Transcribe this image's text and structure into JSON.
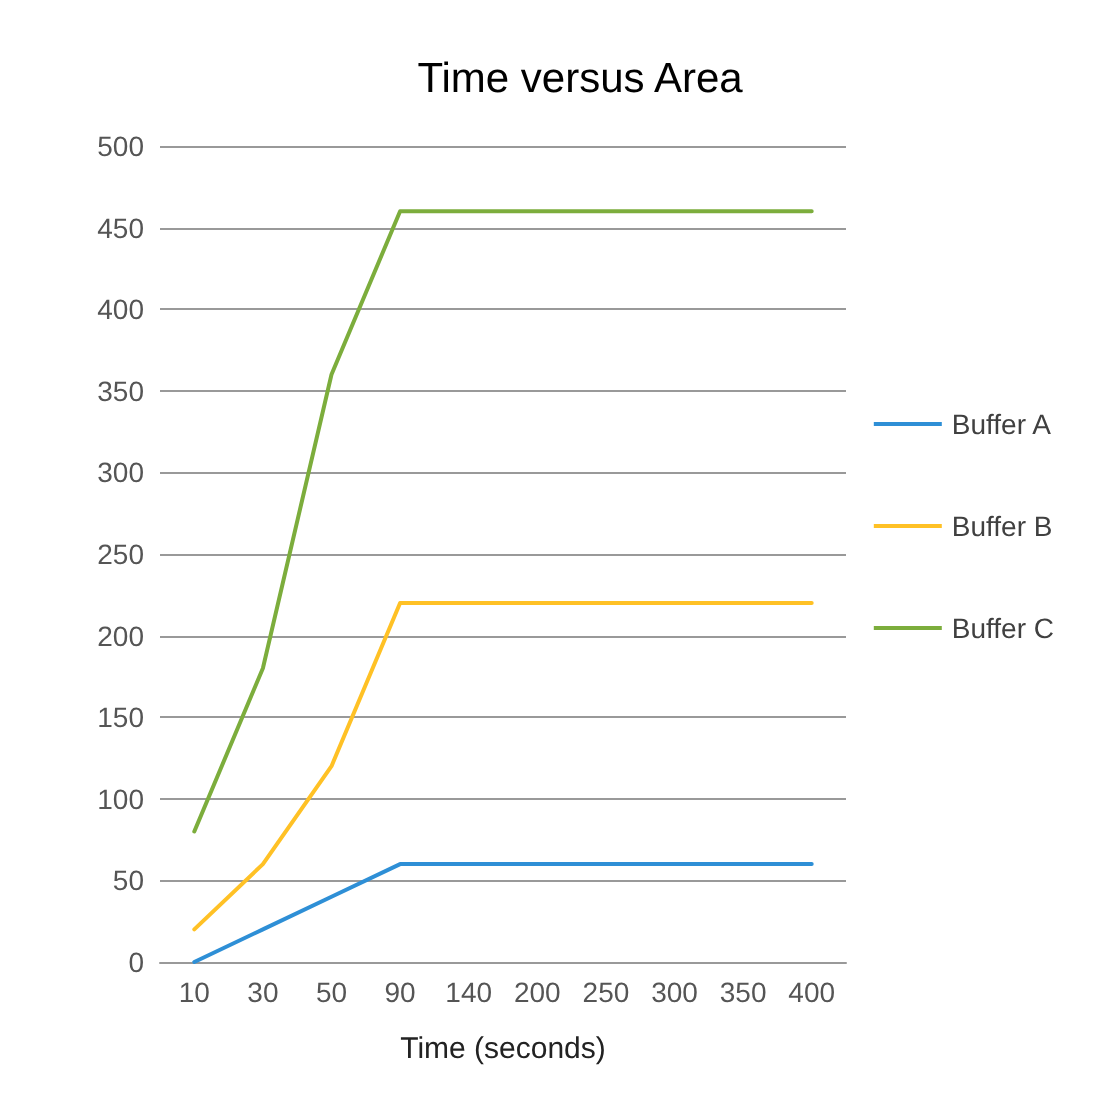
{
  "chart_data": {
    "type": "line",
    "title": "Time versus Area",
    "xlabel": "Time (seconds)",
    "categories": [
      "10",
      "30",
      "50",
      "90",
      "140",
      "200",
      "250",
      "300",
      "350",
      "400"
    ],
    "series": [
      {
        "name": "Buffer A",
        "color": "#2e8fd6",
        "values": [
          0,
          20,
          40,
          60,
          60,
          60,
          60,
          60,
          60,
          60
        ]
      },
      {
        "name": "Buffer B",
        "color": "#ffc125",
        "values": [
          20,
          60,
          120,
          220,
          220,
          220,
          220,
          220,
          220,
          220
        ]
      },
      {
        "name": "Buffer C",
        "color": "#7cad3c",
        "values": [
          80,
          180,
          360,
          460,
          460,
          460,
          460,
          460,
          460,
          460
        ]
      }
    ],
    "ylim": [
      0,
      500
    ],
    "yticks": [
      0,
      50,
      100,
      150,
      200,
      250,
      300,
      350,
      400,
      450,
      500
    ],
    "grid": "y",
    "legend": "right",
    "marker": "none",
    "line_style": "solid"
  }
}
